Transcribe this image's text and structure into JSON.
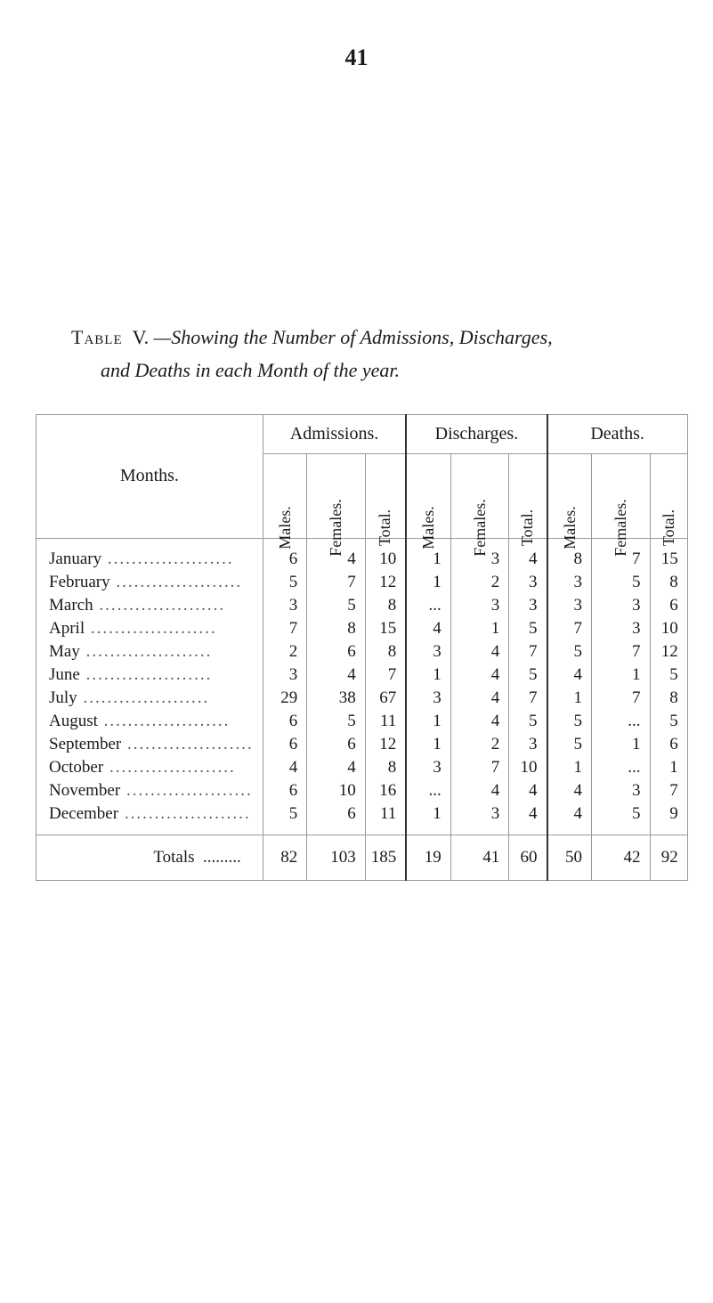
{
  "page_number": "41",
  "title_prefix": "Table",
  "title_roman": "V.",
  "title_text_1": "—Showing the Number of Admissions, Discharges,",
  "title_text_2": "and Deaths in each Month of the year.",
  "groups": [
    "Admissions.",
    "Discharges.",
    "Deaths."
  ],
  "months_label": "Months.",
  "sub_labels": [
    "Males.",
    "Females.",
    "Total.",
    "Males.",
    "Females.",
    "Total.",
    "Males.",
    "Females.",
    "Total."
  ],
  "rows": [
    {
      "month": "January",
      "cells": [
        "6",
        "4",
        "10",
        "1",
        "3",
        "4",
        "8",
        "7",
        "15"
      ]
    },
    {
      "month": "February",
      "cells": [
        "5",
        "7",
        "12",
        "1",
        "2",
        "3",
        "3",
        "5",
        "8"
      ]
    },
    {
      "month": "March",
      "cells": [
        "3",
        "5",
        "8",
        "...",
        "3",
        "3",
        "3",
        "3",
        "6"
      ]
    },
    {
      "month": "April",
      "cells": [
        "7",
        "8",
        "15",
        "4",
        "1",
        "5",
        "7",
        "3",
        "10"
      ]
    },
    {
      "month": "May",
      "cells": [
        "2",
        "6",
        "8",
        "3",
        "4",
        "7",
        "5",
        "7",
        "12"
      ]
    },
    {
      "month": "June",
      "cells": [
        "3",
        "4",
        "7",
        "1",
        "4",
        "5",
        "4",
        "1",
        "5"
      ]
    },
    {
      "month": "July",
      "cells": [
        "29",
        "38",
        "67",
        "3",
        "4",
        "7",
        "1",
        "7",
        "8"
      ]
    },
    {
      "month": "August",
      "cells": [
        "6",
        "5",
        "11",
        "1",
        "4",
        "5",
        "5",
        "...",
        "5"
      ]
    },
    {
      "month": "September",
      "cells": [
        "6",
        "6",
        "12",
        "1",
        "2",
        "3",
        "5",
        "1",
        "6"
      ]
    },
    {
      "month": "October",
      "cells": [
        "4",
        "4",
        "8",
        "3",
        "7",
        "10",
        "1",
        "...",
        "1"
      ]
    },
    {
      "month": "November",
      "cells": [
        "6",
        "10",
        "16",
        "...",
        "4",
        "4",
        "4",
        "3",
        "7"
      ]
    },
    {
      "month": "December",
      "cells": [
        "5",
        "6",
        "11",
        "1",
        "3",
        "4",
        "4",
        "5",
        "9"
      ]
    }
  ],
  "totals_label": "Totals",
  "totals": [
    "82",
    "103",
    "185",
    "19",
    "41",
    "60",
    "50",
    "42",
    "92"
  ],
  "colors": {
    "text": "#1a1a1a",
    "background": "#ffffff",
    "border": "#999999"
  },
  "fontsize": {
    "pagenum": 26,
    "caption": 22,
    "table": 19,
    "rotated": 18
  }
}
